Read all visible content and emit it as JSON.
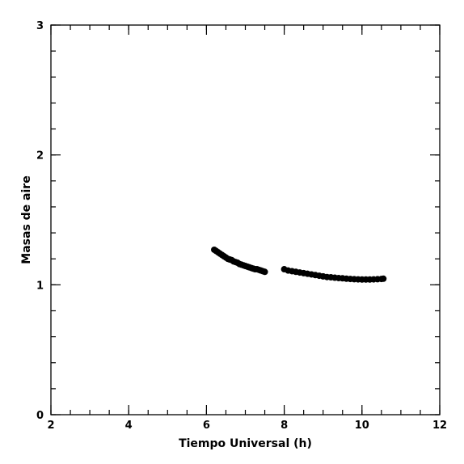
{
  "chart_data": {
    "type": "scatter",
    "xlabel": "Tiempo Universal (h)",
    "ylabel": "Masas de aire",
    "xlim": [
      2,
      12
    ],
    "ylim": [
      0,
      3
    ],
    "xticks": [
      2,
      4,
      6,
      8,
      10,
      12
    ],
    "yticks": [
      0,
      1,
      2,
      3
    ],
    "x_minor_step": 0.5,
    "y_minor_step": 0.2,
    "grid": false,
    "marker_color": "#000000",
    "series": [
      {
        "x": [
          6.2,
          6.25,
          6.3,
          6.35,
          6.4,
          6.45,
          6.5,
          6.55,
          6.6,
          6.65,
          6.7,
          6.75,
          6.8,
          6.85,
          6.9,
          6.95,
          7.0,
          7.05,
          7.1,
          7.15,
          7.2,
          7.25,
          7.3,
          7.35,
          7.4,
          7.45,
          7.5
        ],
        "y": [
          1.27,
          1.26,
          1.25,
          1.24,
          1.23,
          1.22,
          1.21,
          1.2,
          1.195,
          1.19,
          1.18,
          1.175,
          1.17,
          1.16,
          1.155,
          1.15,
          1.145,
          1.14,
          1.135,
          1.13,
          1.125,
          1.12,
          1.12,
          1.115,
          1.11,
          1.105,
          1.1
        ]
      },
      {
        "x": [
          8.0,
          8.1,
          8.2,
          8.3,
          8.4,
          8.5,
          8.6,
          8.7,
          8.8,
          8.9,
          9.0,
          9.1,
          9.2,
          9.3,
          9.4,
          9.5,
          9.6,
          9.7,
          9.8,
          9.9,
          10.0,
          10.1,
          10.2,
          10.3,
          10.4,
          10.5,
          10.55
        ],
        "y": [
          1.12,
          1.11,
          1.105,
          1.1,
          1.095,
          1.09,
          1.085,
          1.08,
          1.075,
          1.07,
          1.065,
          1.06,
          1.058,
          1.055,
          1.052,
          1.05,
          1.047,
          1.045,
          1.043,
          1.042,
          1.041,
          1.041,
          1.041,
          1.042,
          1.043,
          1.045,
          1.047
        ]
      }
    ]
  }
}
